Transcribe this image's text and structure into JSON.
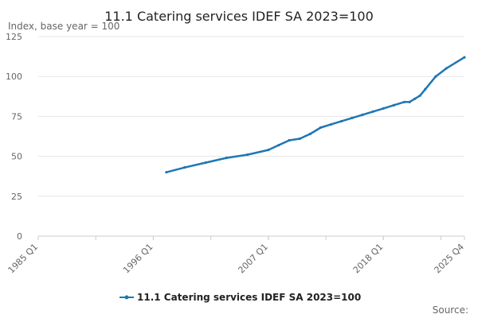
{
  "chart_data": {
    "type": "line",
    "title": "11.1 Catering services IDEF SA 2023=100",
    "ylabel": "Index, base year = 100",
    "ylim": [
      0,
      125
    ],
    "yticks": [
      0,
      25,
      50,
      75,
      100,
      125
    ],
    "x_tick_labels": [
      "1985 Q1",
      "1996 Q1",
      "2007 Q1",
      "2018 Q1",
      "2025 Q4"
    ],
    "x_range": [
      "1985 Q1",
      "2025 Q4"
    ],
    "grid": true,
    "legend_position": "bottom",
    "series": [
      {
        "name": "11.1 Catering services IDEF SA 2023=100",
        "color": "#1f77b4",
        "x": [
          "1997 Q2",
          "1999 Q1",
          "2001 Q1",
          "2003 Q1",
          "2005 Q1",
          "2007 Q1",
          "2008 Q1",
          "2009 Q1",
          "2010 Q1",
          "2011 Q1",
          "2012 Q1",
          "2013 Q1",
          "2014 Q1",
          "2015 Q1",
          "2016 Q1",
          "2017 Q1",
          "2018 Q1",
          "2019 Q1",
          "2020 Q1",
          "2020 Q3",
          "2021 Q1",
          "2021 Q3",
          "2022 Q1",
          "2023 Q1",
          "2024 Q1",
          "2025 Q4"
        ],
        "values": [
          40,
          43,
          46,
          49,
          51,
          54,
          57,
          60,
          61,
          64,
          68,
          70,
          72,
          74,
          76,
          78,
          80,
          82,
          84,
          84,
          86,
          88,
          92,
          100,
          105,
          112
        ]
      }
    ]
  },
  "source_label": "Source:"
}
